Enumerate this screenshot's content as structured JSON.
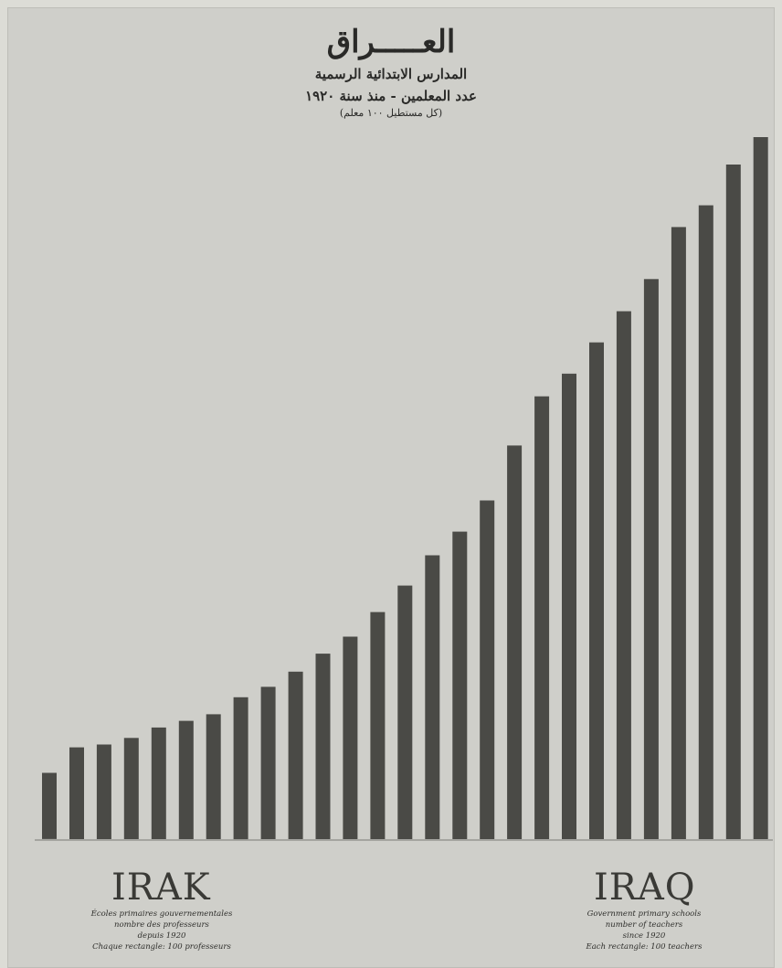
{
  "header": {
    "title_ar": "العـــــراق",
    "subtitle_ar": "المدارس الابتدائية الرسمية",
    "subtitle2_ar": "عدد المعلمين - منذ سنة ١٩٢٠",
    "note_ar": "(كل مستطيل ١٠٠ معلم)"
  },
  "footer": {
    "left_title": "IRAK",
    "left_lines": [
      "Écoles primaires gouvernementales",
      "nombre des professeurs",
      "depuis 1920",
      "Chaque rectangle: 100 professeurs"
    ],
    "right_title": "IRAQ",
    "right_lines": [
      "Government primary schools",
      "number of teachers",
      "since 1920",
      "Each rectangle: 100 teachers"
    ]
  },
  "colors": {
    "bar": "#4a4a46",
    "paper": "#cfcfca",
    "ink": "#2a2a28"
  },
  "chart_data": {
    "type": "bar",
    "categories": [
      "",
      "",
      "",
      "",
      "",
      "",
      "",
      "",
      "",
      "",
      "",
      "",
      "",
      "",
      "",
      "",
      "",
      "",
      "",
      "",
      "",
      "",
      "",
      "",
      "",
      "",
      ""
    ],
    "values": [
      70,
      97,
      100,
      107,
      118,
      125,
      132,
      150,
      161,
      177,
      196,
      214,
      240,
      268,
      300,
      325,
      358,
      416,
      468,
      492,
      525,
      558,
      592,
      647,
      670,
      713,
      742
    ],
    "ylim": [
      0,
      800
    ],
    "grid": false,
    "legend": "none"
  }
}
